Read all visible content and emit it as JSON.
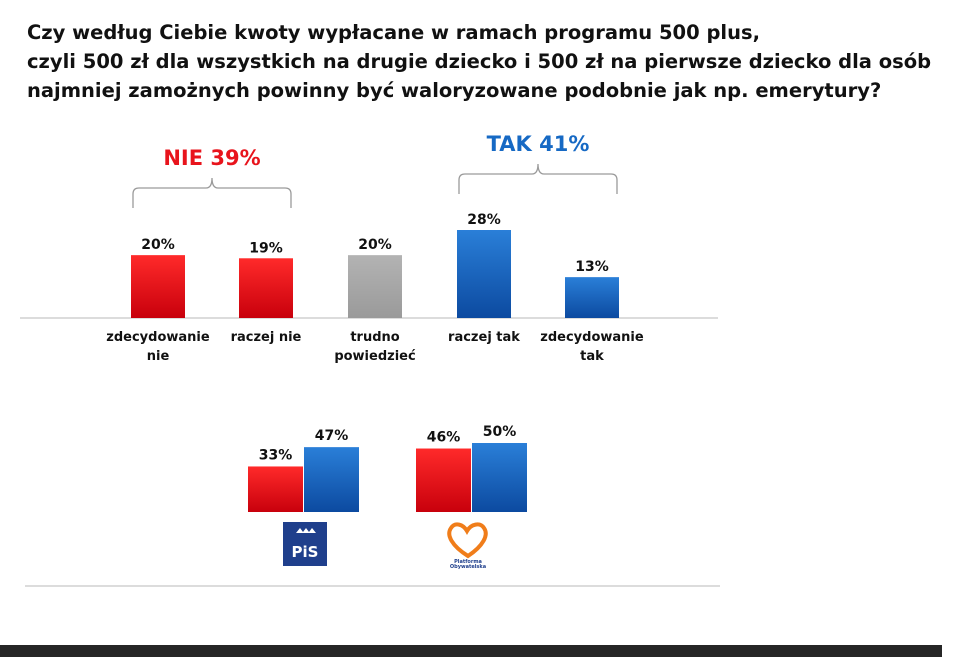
{
  "title_lines": [
    "Czy według Ciebie kwoty wypłacane w ramach programu 500 plus,",
    "czyli 500 zł dla wszystkich na drugie dziecko i 500 zł na pierwsze dziecko dla osób",
    "najmniej zamożnych powinny być waloryzowane podobnie jak np. emerytury?"
  ],
  "colors": {
    "red": "#e8141c",
    "blue": "#1669c4",
    "gray": "#a6a6a6",
    "text": "#111111"
  },
  "chart_data": [
    {
      "type": "bar",
      "title": "",
      "categories": [
        [
          "zdecydowanie",
          "nie"
        ],
        [
          "raczej nie"
        ],
        [
          "trudno",
          "powiedzieć"
        ],
        [
          "raczej tak"
        ],
        [
          "zdecydowanie",
          "tak"
        ]
      ],
      "values": [
        20,
        19,
        20,
        28,
        13
      ],
      "value_labels": [
        "20%",
        "19%",
        "20%",
        "28%",
        "13%"
      ],
      "bar_colors": [
        "red",
        "red",
        "gray",
        "blue",
        "blue"
      ],
      "groups": [
        {
          "label": "NIE 39%",
          "color": "red",
          "spans": [
            0,
            1
          ]
        },
        {
          "label": "TAK 41%",
          "color": "blue",
          "spans": [
            3,
            4
          ]
        }
      ],
      "xlabel": "",
      "ylabel": "",
      "ylim": [
        0,
        28
      ]
    },
    {
      "type": "bar",
      "title": "",
      "categories": [
        "PiS",
        "Platforma Obywatelska"
      ],
      "series": [
        {
          "name": "NIE",
          "color": "red",
          "values": [
            33,
            46
          ],
          "labels": [
            "33%",
            "46%"
          ]
        },
        {
          "name": "TAK",
          "color": "blue",
          "values": [
            47,
            50
          ],
          "labels": [
            "47%",
            "50%"
          ]
        }
      ],
      "logos": [
        {
          "name": "pis-logo",
          "text": "PiS"
        },
        {
          "name": "po-logo",
          "text": [
            "Platforma",
            "Obywatelska"
          ]
        }
      ],
      "xlabel": "",
      "ylabel": "",
      "ylim": [
        0,
        50
      ]
    }
  ]
}
